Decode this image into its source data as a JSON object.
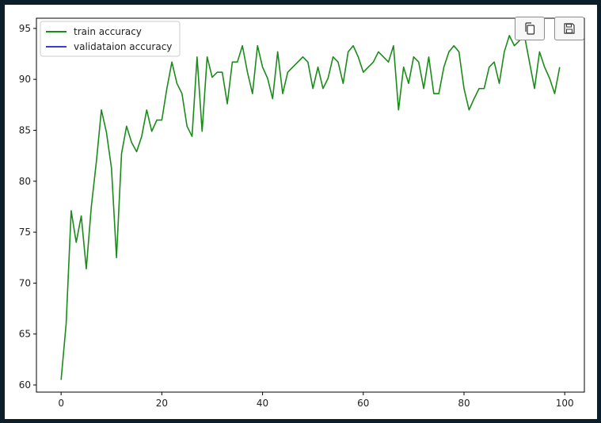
{
  "toolbar": {
    "copy_icon": "copy-icon",
    "save_icon": "floppy-disk-icon"
  },
  "colors": {
    "background": "#0d1e2b",
    "train": "#1a8c1a",
    "validation": "#3b3bdc"
  },
  "chart_data": {
    "type": "line",
    "title": "",
    "xlabel": "",
    "ylabel": "",
    "xlim": [
      -4.9,
      103.9
    ],
    "ylim": [
      59.3,
      96.0
    ],
    "xticks": [
      0,
      20,
      40,
      60,
      80,
      100
    ],
    "yticks": [
      60,
      65,
      70,
      75,
      80,
      85,
      90,
      95
    ],
    "grid": false,
    "legend": {
      "location": "upper left"
    },
    "series": [
      {
        "name": "train accuracy",
        "color": "#1a8c1a",
        "x": [
          0,
          1,
          2,
          3,
          4,
          5,
          6,
          7,
          8,
          9,
          10,
          11,
          12,
          13,
          14,
          15,
          16,
          17,
          18,
          19,
          20,
          21,
          22,
          23,
          24,
          25,
          26,
          27,
          28,
          29,
          30,
          31,
          32,
          33,
          34,
          35,
          36,
          37,
          38,
          39,
          40,
          41,
          42,
          43,
          44,
          45,
          46,
          47,
          48,
          49,
          50,
          51,
          52,
          53,
          54,
          55,
          56,
          57,
          58,
          59,
          60,
          61,
          62,
          63,
          64,
          65,
          66,
          67,
          68,
          69,
          70,
          71,
          72,
          73,
          74,
          75,
          76,
          77,
          78,
          79,
          80,
          81,
          82,
          83,
          84,
          85,
          86,
          87,
          88,
          89,
          90,
          91,
          92,
          93,
          94,
          95,
          96,
          97,
          98,
          99
        ],
        "values": [
          60.5,
          66.0,
          77.1,
          74.0,
          76.6,
          71.4,
          77.5,
          81.9,
          87.0,
          84.8,
          81.3,
          72.5,
          82.7,
          85.4,
          83.8,
          82.9,
          84.4,
          87.0,
          84.9,
          86.0,
          86.0,
          89.1,
          91.7,
          89.6,
          88.6,
          85.4,
          84.4,
          92.2,
          84.9,
          92.2,
          90.2,
          90.7,
          90.7,
          87.6,
          91.7,
          91.7,
          93.3,
          90.7,
          88.6,
          93.3,
          91.2,
          90.1,
          88.1,
          92.7,
          88.6,
          90.7,
          91.2,
          91.7,
          92.2,
          91.7,
          89.1,
          91.2,
          89.1,
          90.1,
          92.2,
          91.7,
          89.6,
          92.7,
          93.3,
          92.2,
          90.7,
          91.2,
          91.7,
          92.7,
          92.2,
          91.7,
          93.3,
          87.0,
          91.2,
          89.6,
          92.2,
          91.7,
          89.1,
          92.2,
          88.6,
          88.6,
          91.2,
          92.7,
          93.3,
          92.7,
          89.1,
          87.0,
          88.1,
          89.1,
          89.1,
          91.2,
          91.7,
          89.6,
          92.7,
          94.3,
          93.3,
          93.8,
          94.3,
          91.7,
          89.1,
          92.7,
          91.2,
          90.1,
          88.6,
          91.2
        ]
      },
      {
        "name": "validataion accuracy",
        "color": "#3b3bdc",
        "x": [],
        "values": []
      }
    ]
  }
}
